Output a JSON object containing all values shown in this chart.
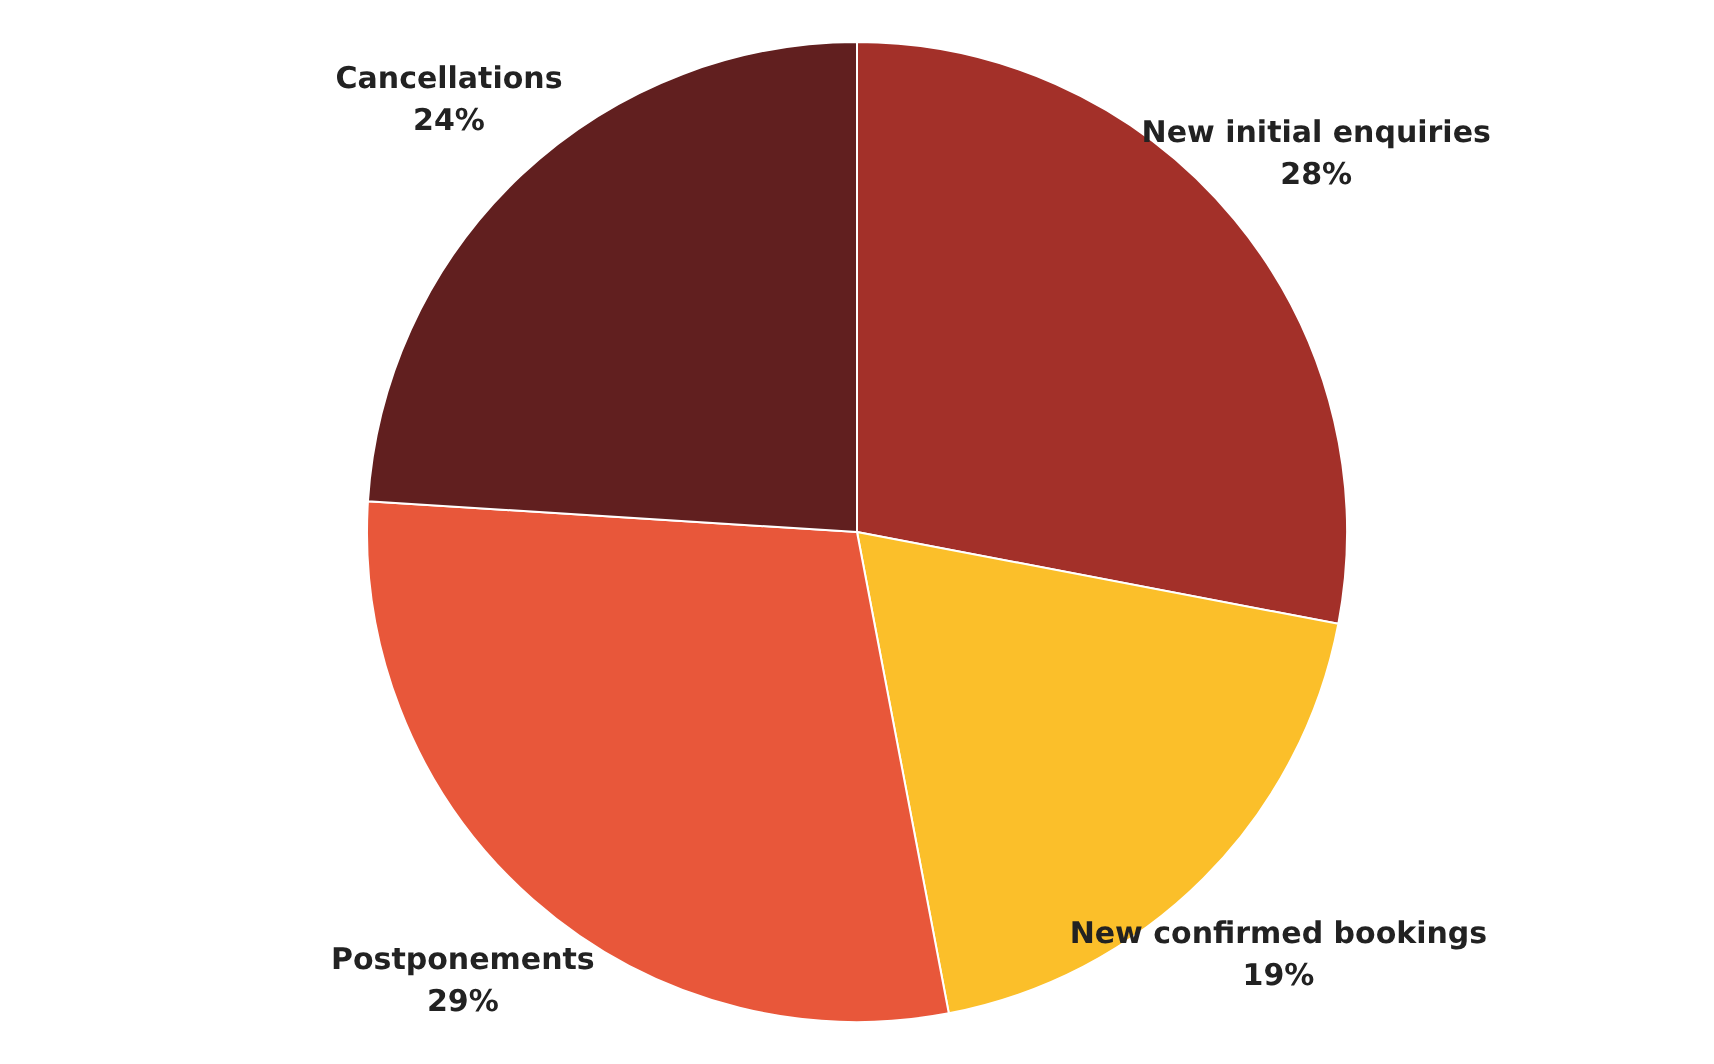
{
  "chart_data": {
    "type": "pie",
    "categories": [
      "New initial enquiries",
      "New confirmed bookings",
      "Postponements",
      "Cancellations"
    ],
    "values": [
      28,
      19,
      29,
      24
    ],
    "value_labels": [
      "28%",
      "19%",
      "29%",
      "24%"
    ],
    "colors": [
      "#a33029",
      "#fbbf2a",
      "#e8573a",
      "#611f1f"
    ]
  }
}
